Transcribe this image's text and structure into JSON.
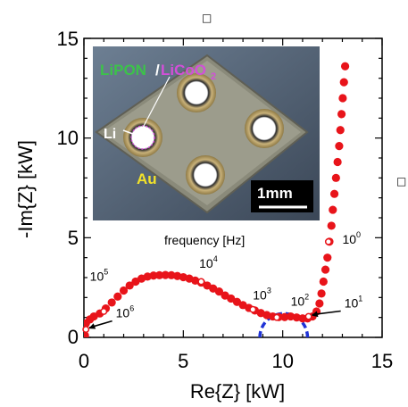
{
  "chart_data": {
    "type": "scatter",
    "xlabel": "Re{Z} [kW]",
    "ylabel": "-Im{Z} [kW]",
    "xlim": [
      0,
      15
    ],
    "ylim": [
      0,
      15
    ],
    "x_ticks": [
      "0",
      "5",
      "10",
      "15"
    ],
    "y_ticks": [
      "0",
      "5",
      "10",
      "15"
    ],
    "marker_color": "#e8141a",
    "open_marker_color": "#ffffff",
    "fit_color": "#1f33d6",
    "series": [
      {
        "name": "",
        "points": [
          [
            0.05,
            0.1
          ],
          [
            0.1,
            0.7
          ],
          [
            0.3,
            0.9
          ],
          [
            0.5,
            1.05
          ],
          [
            0.8,
            1.2
          ],
          [
            1.1,
            1.45
          ],
          [
            1.4,
            1.75
          ],
          [
            1.7,
            2.05
          ],
          [
            2.0,
            2.35
          ],
          [
            2.3,
            2.6
          ],
          [
            2.6,
            2.8
          ],
          [
            2.9,
            2.95
          ],
          [
            3.2,
            3.05
          ],
          [
            3.5,
            3.1
          ],
          [
            3.8,
            3.12
          ],
          [
            4.1,
            3.13
          ],
          [
            4.4,
            3.12
          ],
          [
            4.7,
            3.08
          ],
          [
            5.0,
            3.02
          ],
          [
            5.3,
            2.95
          ],
          [
            5.6,
            2.85
          ],
          [
            5.9,
            2.75
          ],
          [
            6.2,
            2.6
          ],
          [
            6.5,
            2.45
          ],
          [
            6.8,
            2.3
          ],
          [
            7.1,
            2.1
          ],
          [
            7.4,
            1.95
          ],
          [
            7.7,
            1.78
          ],
          [
            8.0,
            1.62
          ],
          [
            8.3,
            1.48
          ],
          [
            8.6,
            1.35
          ],
          [
            8.9,
            1.22
          ],
          [
            9.2,
            1.12
          ],
          [
            9.5,
            1.05
          ],
          [
            9.8,
            1.02
          ],
          [
            10.1,
            1.02
          ],
          [
            10.4,
            1.05
          ],
          [
            10.7,
            1.0
          ],
          [
            11.0,
            0.95
          ],
          [
            11.25,
            0.95
          ],
          [
            11.5,
            1.05
          ],
          [
            11.7,
            1.3
          ],
          [
            11.85,
            1.7
          ],
          [
            11.95,
            2.2
          ],
          [
            12.05,
            2.8
          ],
          [
            12.15,
            3.4
          ],
          [
            12.25,
            4.0
          ],
          [
            12.35,
            4.8
          ],
          [
            12.45,
            5.6
          ],
          [
            12.52,
            6.4
          ],
          [
            12.6,
            7.2
          ],
          [
            12.68,
            8.0
          ],
          [
            12.76,
            8.8
          ],
          [
            12.84,
            9.6
          ],
          [
            12.9,
            10.4
          ],
          [
            12.96,
            11.2
          ],
          [
            13.02,
            12.0
          ],
          [
            13.08,
            12.8
          ],
          [
            13.14,
            13.6
          ]
        ]
      }
    ],
    "frequency_markers": [
      {
        "label_base": "10",
        "label_exp": "0",
        "x": 12.3,
        "y": 4.8,
        "label_x": 13.0,
        "label_y": 4.7,
        "arrow": false
      },
      {
        "label_base": "10",
        "label_exp": "1",
        "x": 11.3,
        "y": 1.05,
        "label_x": 13.1,
        "label_y": 1.5,
        "arrow": true
      },
      {
        "label_base": "10",
        "label_exp": "2",
        "x": 9.7,
        "y": 1.0,
        "label_x": 10.4,
        "label_y": 1.6,
        "arrow": false
      },
      {
        "label_base": "10",
        "label_exp": "3",
        "x": 8.5,
        "y": 1.4,
        "label_x": 8.5,
        "label_y": 1.9,
        "arrow": false
      },
      {
        "label_base": "10",
        "label_exp": "4",
        "x": 5.9,
        "y": 2.8,
        "label_x": 5.8,
        "label_y": 3.5,
        "arrow": false
      },
      {
        "label_base": "10",
        "label_exp": "5",
        "x": 1.0,
        "y": 1.3,
        "label_x": 0.3,
        "label_y": 2.85,
        "arrow": false
      },
      {
        "label_base": "10",
        "label_exp": "6",
        "x": 0.1,
        "y": 0.4,
        "label_x": 1.6,
        "label_y": 1.0,
        "arrow": true
      }
    ],
    "fit_arc": {
      "center_x": 10.05,
      "center_y": 0,
      "radius": 1.2
    },
    "annotation": "frequency [Hz]",
    "stray_glyphs": [
      "□",
      "□"
    ]
  },
  "inset": {
    "label_lipon": "LiPON",
    "label_slash": "/",
    "label_licoo": "LiCoO",
    "label_licoo_sub": "2",
    "label_li": "Li",
    "label_au": "Au",
    "scale_label": "1mm",
    "colors": {
      "lipon": "#3cc24a",
      "licoo": "#d24fd8",
      "au": "#f2e22a",
      "li": "#ffffff"
    }
  }
}
